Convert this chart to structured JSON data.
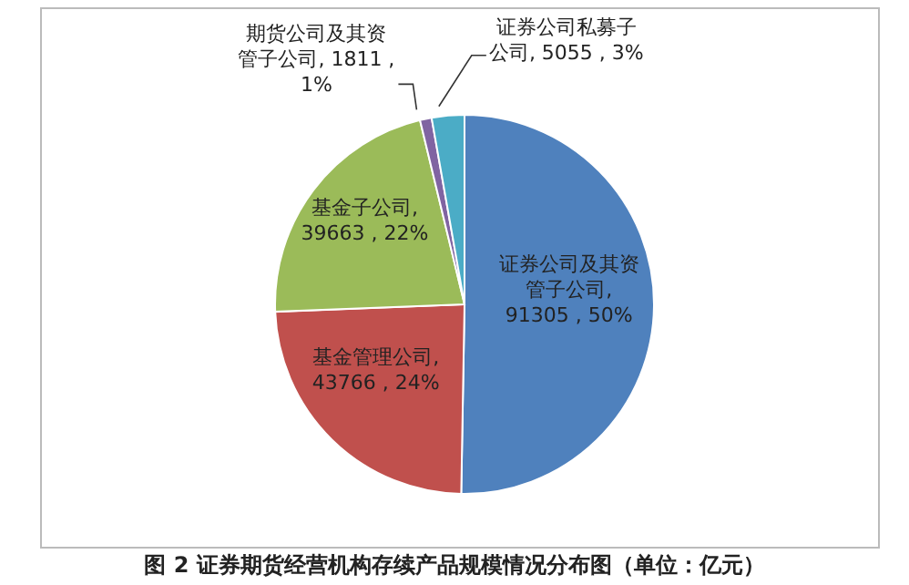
{
  "chart_data": {
    "type": "pie",
    "title": "图 2 证券期货经营机构存续产品规模情况分布图（单位：亿元）",
    "categories": [
      "证券公司及其资管子公司",
      "基金管理公司",
      "基金子公司",
      "期货公司及其资管子公司",
      "证券公司私募子公司"
    ],
    "values": [
      91305,
      43766,
      39663,
      1811,
      5055
    ],
    "value_labels": [
      ", 91305 , 50%",
      ", 43766 , 24%",
      ", 39663 , 22%",
      ", 1811 , 1%",
      ", 5055 , 3%"
    ],
    "colors": [
      "#4f81bd",
      "#c0504d",
      "#9bbb59",
      "#8064a2",
      "#4bacc6"
    ],
    "legend": false
  }
}
